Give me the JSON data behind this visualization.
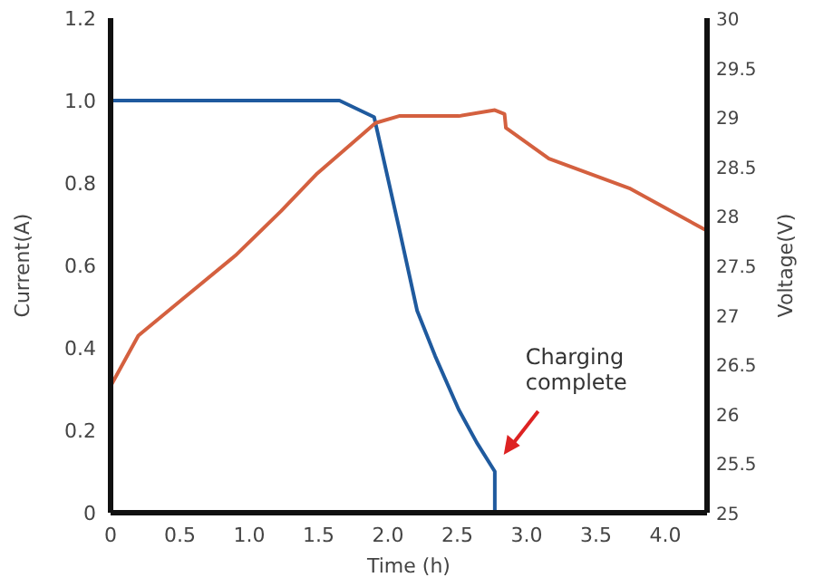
{
  "chart_data": {
    "type": "line",
    "xlabel": "Time (h)",
    "ylabel": "Current(A)",
    "y2label": "Voltage(V)",
    "xlim": [
      0,
      4.3
    ],
    "xticks": [
      0,
      {
        "value": 0.5,
        "label": "0.5"
      },
      {
        "value": 1,
        "label": "1.0"
      },
      {
        "value": 1.5,
        "label": "1.5"
      },
      {
        "value": 2,
        "label": "2.0"
      },
      {
        "value": 2.5,
        "label": "2.5"
      },
      {
        "value": 3,
        "label": "3.0"
      },
      {
        "value": 3.5,
        "label": "3.5"
      },
      {
        "value": 4,
        "label": "4.0"
      }
    ],
    "ylim": [
      0,
      1.2
    ],
    "yticks": [
      0,
      0.2,
      0.4,
      0.6,
      0.8,
      {
        "value": 1,
        "label": "1.0"
      },
      1.2
    ],
    "y2lim": [
      25,
      30
    ],
    "y2ticks": [
      25,
      25.5,
      26,
      26.5,
      27,
      27.5,
      28,
      28.5,
      29,
      29.5,
      30
    ],
    "grid": false,
    "marker": "none",
    "line_style": "solid",
    "series": [
      {
        "color": "#1f5a9e",
        "x": [
          0,
          1.65,
          1.9,
          2.08,
          2.21,
          2.34,
          2.51,
          2.64,
          2.77,
          2.77,
          4.3
        ],
        "values": [
          1,
          1,
          0.96,
          0.69,
          0.49,
          0.38,
          0.25,
          0.17,
          0.1,
          0,
          0
        ]
      },
      {
        "color": "#d4603f",
        "axis": "y2",
        "x": [
          0,
          0.2,
          0.51,
          0.9,
          1.23,
          1.49,
          1.91,
          2.08,
          2.51,
          2.77,
          2.84,
          2.85,
          3.16,
          3.74,
          4.3
        ],
        "values": [
          26.28,
          26.79,
          27.15,
          27.6,
          28.05,
          28.43,
          28.94,
          29.01,
          29.01,
          29.07,
          29.03,
          28.89,
          28.58,
          28.28,
          27.85
        ]
      }
    ],
    "annotations": [
      "Charging complete"
    ]
  }
}
